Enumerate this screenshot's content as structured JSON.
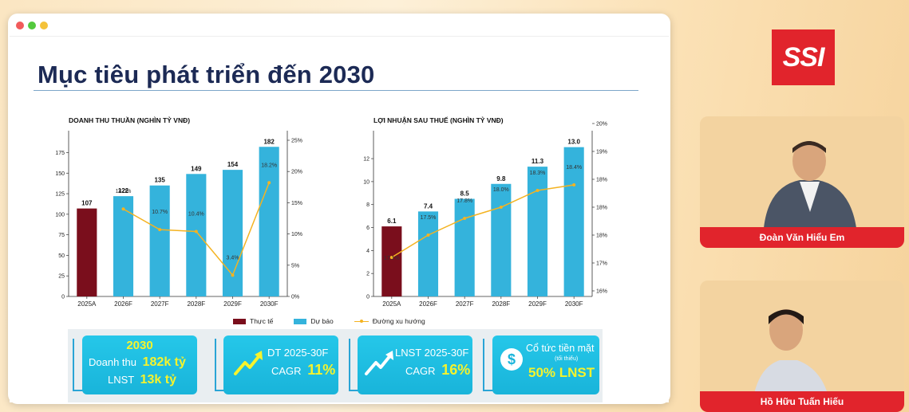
{
  "window": {
    "controls": [
      "close",
      "minimize",
      "maximize"
    ],
    "control_colors": [
      "#f15b5b",
      "#53c93d",
      "#f4c23a"
    ]
  },
  "slide": {
    "title": "Mục tiêu phát triển đến 2030"
  },
  "chart_data": [
    {
      "type": "bar",
      "title": "DOANH THU THUẦN (NGHÌN TỶ VNĐ)",
      "categories": [
        "2025A",
        "2026F",
        "2027F",
        "2028F",
        "2029F",
        "2030F"
      ],
      "series": [
        {
          "name": "Thực tế",
          "color": "#7a0e1c",
          "values": [
            107,
            null,
            null,
            null,
            null,
            null
          ]
        },
        {
          "name": "Dự báo",
          "color": "#34b3dc",
          "values": [
            null,
            122,
            135,
            149,
            154,
            182
          ]
        }
      ],
      "line": {
        "name": "Đường xu hướng",
        "color": "#f4b321",
        "values": [
          null,
          14.0,
          10.7,
          10.4,
          3.4,
          18.2
        ],
        "labels": [
          "",
          "14.0%",
          "10.7%",
          "10.4%",
          "3.4%",
          "18.2%"
        ]
      },
      "bar_labels": [
        "107",
        "122",
        "135",
        "149",
        "154",
        "182"
      ],
      "ylim": [
        0,
        190
      ],
      "y_ticks": [
        "0",
        "25",
        "50",
        "75",
        "100",
        "125",
        "150",
        "175"
      ],
      "y2lim": [
        0,
        25
      ],
      "y2_ticks": [
        "0%",
        "5%",
        "10%",
        "15%",
        "20%",
        "25%"
      ],
      "grid": false
    },
    {
      "type": "bar",
      "title": "LỢI NHUẬN SAU THUẾ (NGHÌN TỶ VNĐ)",
      "categories": [
        "2025A",
        "2026F",
        "2027F",
        "2028F",
        "2029F",
        "2030F"
      ],
      "series": [
        {
          "name": "Thực tế",
          "color": "#7a0e1c",
          "values": [
            6.1,
            null,
            null,
            null,
            null,
            null
          ]
        },
        {
          "name": "Dự báo",
          "color": "#34b3dc",
          "values": [
            null,
            7.4,
            8.5,
            9.8,
            11.3,
            13.0
          ]
        }
      ],
      "line": {
        "name": "Đường xu hướng",
        "color": "#f4b321",
        "values": [
          17.1,
          17.5,
          17.8,
          18.0,
          18.3,
          18.4
        ],
        "labels": [
          "17.1%",
          "17.5%",
          "17.8%",
          "18.0%",
          "18.3%",
          "18.4%"
        ]
      },
      "bar_labels": [
        "6.1",
        "7.4",
        "8.5",
        "9.8",
        "11.3",
        "13.0"
      ],
      "ylim": [
        0,
        13.6
      ],
      "y_ticks": [
        "0",
        "2",
        "4",
        "6",
        "8",
        "10",
        "12"
      ],
      "y2lim": [
        16.4,
        19.2
      ],
      "y2_ticks": [
        "16%",
        "17%",
        "18%",
        "18%",
        "18%",
        "19%",
        "20%"
      ],
      "y2_tick_values": [
        16.5,
        17.0,
        17.5,
        18.0,
        18.5,
        19.0,
        19.5
      ],
      "grid": false
    }
  ],
  "legend": {
    "items": [
      {
        "label": "Thực tế",
        "color": "#7a0e1c"
      },
      {
        "label": "Dự báo",
        "color": "#34b3dc"
      },
      {
        "label": "Đường xu hướng",
        "color": "#f4b321"
      }
    ]
  },
  "kpis": {
    "card1": {
      "year": "2030",
      "revenue_label": "Doanh thu",
      "revenue_value": "182k tỷ",
      "profit_label": "LNST",
      "profit_value": "13k tỷ"
    },
    "card2": {
      "line1": "DT 2025-30F",
      "cagr_label": "CAGR",
      "cagr_value": "11%"
    },
    "card3": {
      "line1": "LNST 2025-30F",
      "cagr_label": "CAGR",
      "cagr_value": "16%"
    },
    "card4": {
      "line1": "Cổ tức tiền mặt",
      "note": "(tối thiểu)",
      "value": "50% LNST"
    }
  },
  "brand": {
    "logo_text": "SSI",
    "color": "#e1242c"
  },
  "speakers": [
    {
      "name": "Đoàn Văn Hiểu Em"
    },
    {
      "name": "Hồ Hữu Tuấn Hiếu"
    }
  ]
}
